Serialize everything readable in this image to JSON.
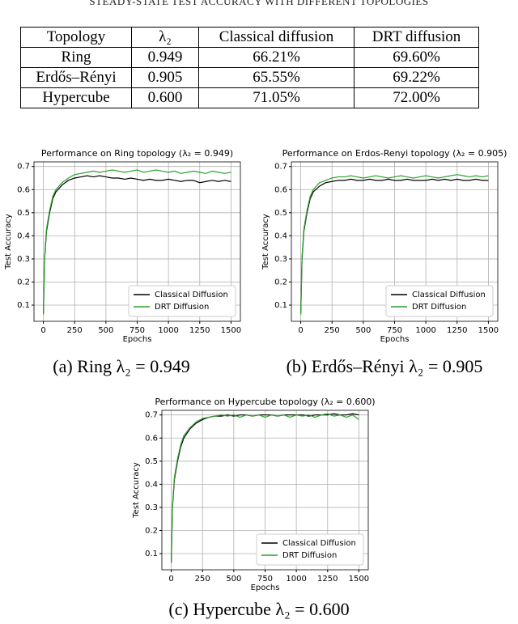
{
  "table": {
    "title": "STEADY-STATE TEST ACCURACY WITH DIFFERENT TOPOLOGIES",
    "header": [
      "Topology",
      "λ₂",
      "Classical diffusion",
      "DRT diffusion"
    ],
    "rows": [
      [
        "Ring",
        "0.949",
        "66.21%",
        "69.60%"
      ],
      [
        "Erdős–Rényi",
        "0.905",
        "65.55%",
        "69.22%"
      ],
      [
        "Hypercube",
        "0.600",
        "71.05%",
        "72.00%"
      ]
    ]
  },
  "chart_data": [
    {
      "type": "line",
      "title": "Performance on Ring topology (λ₂ = 0.949)",
      "caption": "(a) Ring λ₂ = 0.949",
      "xlabel": "Epochs",
      "ylabel": "Test Accuracy",
      "x": [
        0,
        10,
        25,
        50,
        75,
        100,
        150,
        200,
        250,
        300,
        350,
        400,
        450,
        500,
        550,
        600,
        650,
        700,
        750,
        800,
        850,
        900,
        950,
        1000,
        1050,
        1100,
        1150,
        1200,
        1250,
        1300,
        1350,
        1400,
        1450,
        1500
      ],
      "series": [
        {
          "name": "Classical Diffusion",
          "color": "#000000",
          "values": [
            0.06,
            0.3,
            0.42,
            0.5,
            0.56,
            0.59,
            0.62,
            0.64,
            0.65,
            0.655,
            0.66,
            0.655,
            0.66,
            0.655,
            0.65,
            0.65,
            0.645,
            0.65,
            0.645,
            0.64,
            0.645,
            0.64,
            0.64,
            0.645,
            0.64,
            0.635,
            0.64,
            0.64,
            0.63,
            0.635,
            0.64,
            0.635,
            0.64,
            0.635
          ]
        },
        {
          "name": "DRT Diffusion",
          "color": "#2ca02c",
          "values": [
            0.06,
            0.31,
            0.43,
            0.51,
            0.57,
            0.6,
            0.63,
            0.65,
            0.665,
            0.67,
            0.675,
            0.68,
            0.675,
            0.68,
            0.685,
            0.68,
            0.675,
            0.68,
            0.685,
            0.675,
            0.68,
            0.685,
            0.68,
            0.675,
            0.68,
            0.67,
            0.675,
            0.68,
            0.675,
            0.67,
            0.68,
            0.675,
            0.67,
            0.675
          ]
        }
      ],
      "xlim": [
        -75,
        1575
      ],
      "ylim": [
        0.03,
        0.72
      ],
      "xticks": [
        0,
        250,
        500,
        750,
        1000,
        1250,
        1500
      ],
      "yticks": [
        0.1,
        0.2,
        0.3,
        0.4,
        0.5,
        0.6,
        0.7
      ],
      "grid": true,
      "legend": "lower right"
    },
    {
      "type": "line",
      "title": "Performance on Erdos-Renyi topology (λ₂ = 0.905)",
      "caption": "(b) Erdős–Rényi λ₂ = 0.905",
      "xlabel": "Epochs",
      "ylabel": "Test Accuracy",
      "x": [
        0,
        10,
        25,
        50,
        75,
        100,
        150,
        200,
        250,
        300,
        350,
        400,
        450,
        500,
        550,
        600,
        650,
        700,
        750,
        800,
        850,
        900,
        950,
        1000,
        1050,
        1100,
        1150,
        1200,
        1250,
        1300,
        1350,
        1400,
        1450,
        1500
      ],
      "series": [
        {
          "name": "Classical Diffusion",
          "color": "#000000",
          "values": [
            0.06,
            0.3,
            0.42,
            0.5,
            0.56,
            0.59,
            0.615,
            0.63,
            0.635,
            0.64,
            0.64,
            0.645,
            0.64,
            0.64,
            0.645,
            0.64,
            0.64,
            0.645,
            0.64,
            0.64,
            0.645,
            0.64,
            0.64,
            0.64,
            0.645,
            0.64,
            0.645,
            0.64,
            0.645,
            0.64,
            0.64,
            0.645,
            0.64,
            0.64
          ]
        },
        {
          "name": "DRT Diffusion",
          "color": "#2ca02c",
          "values": [
            0.06,
            0.31,
            0.43,
            0.51,
            0.57,
            0.6,
            0.63,
            0.64,
            0.65,
            0.655,
            0.655,
            0.66,
            0.655,
            0.65,
            0.655,
            0.66,
            0.655,
            0.65,
            0.655,
            0.66,
            0.655,
            0.65,
            0.655,
            0.66,
            0.655,
            0.65,
            0.655,
            0.66,
            0.665,
            0.66,
            0.655,
            0.66,
            0.655,
            0.66
          ]
        }
      ],
      "xlim": [
        -75,
        1575
      ],
      "ylim": [
        0.03,
        0.72
      ],
      "xticks": [
        0,
        250,
        500,
        750,
        1000,
        1250,
        1500
      ],
      "yticks": [
        0.1,
        0.2,
        0.3,
        0.4,
        0.5,
        0.6,
        0.7
      ],
      "grid": true,
      "legend": "lower right"
    },
    {
      "type": "line",
      "title": "Performance on Hypercube topology (λ₂ = 0.600)",
      "caption": "(c) Hypercube λ₂ = 0.600",
      "xlabel": "Epochs",
      "ylabel": "Test Accuracy",
      "x": [
        0,
        10,
        25,
        50,
        75,
        100,
        150,
        200,
        250,
        300,
        350,
        400,
        450,
        500,
        550,
        600,
        650,
        700,
        750,
        800,
        850,
        900,
        950,
        1000,
        1050,
        1100,
        1150,
        1200,
        1250,
        1300,
        1350,
        1400,
        1450,
        1500
      ],
      "series": [
        {
          "name": "Classical Diffusion",
          "color": "#000000",
          "values": [
            0.06,
            0.3,
            0.42,
            0.5,
            0.56,
            0.6,
            0.64,
            0.665,
            0.68,
            0.69,
            0.695,
            0.695,
            0.7,
            0.695,
            0.7,
            0.7,
            0.695,
            0.7,
            0.7,
            0.7,
            0.695,
            0.7,
            0.7,
            0.7,
            0.7,
            0.695,
            0.7,
            0.7,
            0.7,
            0.705,
            0.7,
            0.7,
            0.705,
            0.7
          ]
        },
        {
          "name": "DRT Diffusion",
          "color": "#2ca02c",
          "values": [
            0.06,
            0.31,
            0.43,
            0.51,
            0.57,
            0.61,
            0.645,
            0.67,
            0.685,
            0.69,
            0.695,
            0.7,
            0.695,
            0.7,
            0.69,
            0.7,
            0.695,
            0.7,
            0.69,
            0.7,
            0.695,
            0.7,
            0.69,
            0.7,
            0.695,
            0.7,
            0.69,
            0.7,
            0.705,
            0.695,
            0.7,
            0.69,
            0.7,
            0.68
          ]
        }
      ],
      "xlim": [
        -75,
        1575
      ],
      "ylim": [
        0.03,
        0.72
      ],
      "xticks": [
        0,
        250,
        500,
        750,
        1000,
        1250,
        1500
      ],
      "yticks": [
        0.1,
        0.2,
        0.3,
        0.4,
        0.5,
        0.6,
        0.7
      ],
      "grid": true,
      "legend": "lower right"
    }
  ]
}
